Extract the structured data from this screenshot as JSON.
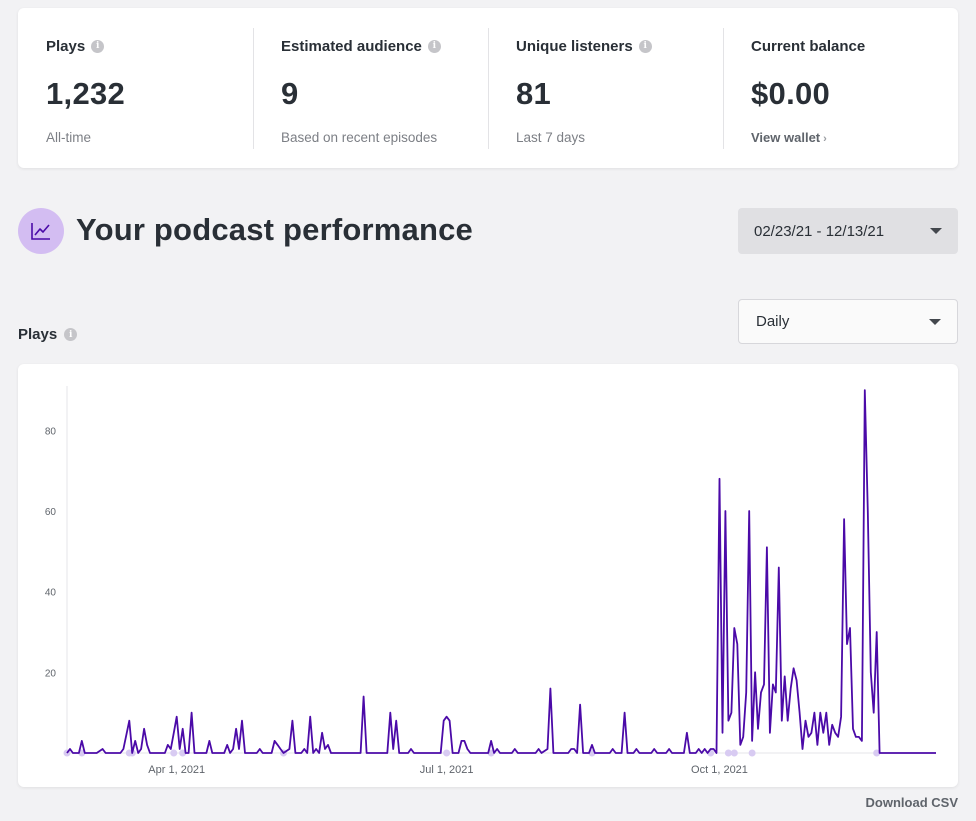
{
  "stats": [
    {
      "label": "Plays",
      "info": true,
      "value": "1,232",
      "sub": "All-time"
    },
    {
      "label": "Estimated audience",
      "info": true,
      "value": "9",
      "sub": "Based on recent episodes"
    },
    {
      "label": "Unique listeners",
      "info": true,
      "value": "81",
      "sub": "Last 7 days"
    },
    {
      "label": "Current balance",
      "info": false,
      "value": "$0.00",
      "link": "View wallet"
    }
  ],
  "performance": {
    "title": "Your podcast performance",
    "icon": "trend-chart-icon",
    "date_range": "02/23/21 - 12/13/21",
    "interval": "Daily",
    "plays_label": "Plays",
    "download": "Download CSV"
  },
  "colors": {
    "line": "#4b0aa8",
    "marker": "#d8cbf2",
    "accent_bg": "#d3bdf2"
  },
  "chart_data": {
    "type": "line",
    "title": "",
    "xlabel": "",
    "ylabel": "",
    "ylim": [
      0,
      92
    ],
    "yticks": [
      20,
      40,
      60,
      80
    ],
    "x_range": [
      "2021-02-23",
      "2021-12-13"
    ],
    "xticks": [
      {
        "date": "2021-04-01",
        "label": "Apr 1, 2021"
      },
      {
        "date": "2021-07-01",
        "label": "Jul 1, 2021"
      },
      {
        "date": "2021-10-01",
        "label": "Oct 1, 2021"
      }
    ],
    "grid": false,
    "series": [
      {
        "name": "",
        "points": [
          [
            "2021-02-23",
            0
          ],
          [
            "2021-02-24",
            1
          ],
          [
            "2021-02-25",
            0
          ],
          [
            "2021-02-26",
            0
          ],
          [
            "2021-02-27",
            0
          ],
          [
            "2021-02-28",
            3
          ],
          [
            "2021-03-01",
            0
          ],
          [
            "2021-03-05",
            0
          ],
          [
            "2021-03-07",
            1
          ],
          [
            "2021-03-08",
            0
          ],
          [
            "2021-03-13",
            0
          ],
          [
            "2021-03-14",
            1
          ],
          [
            "2021-03-16",
            8
          ],
          [
            "2021-03-17",
            0
          ],
          [
            "2021-03-18",
            3
          ],
          [
            "2021-03-19",
            0
          ],
          [
            "2021-03-20",
            1
          ],
          [
            "2021-03-21",
            6
          ],
          [
            "2021-03-22",
            2
          ],
          [
            "2021-03-23",
            0
          ],
          [
            "2021-03-28",
            0
          ],
          [
            "2021-03-29",
            2
          ],
          [
            "2021-03-30",
            1
          ],
          [
            "2021-03-31",
            5
          ],
          [
            "2021-04-01",
            9
          ],
          [
            "2021-04-02",
            1
          ],
          [
            "2021-04-03",
            6
          ],
          [
            "2021-04-04",
            0
          ],
          [
            "2021-04-05",
            0
          ],
          [
            "2021-04-06",
            10
          ],
          [
            "2021-04-07",
            0
          ],
          [
            "2021-04-11",
            0
          ],
          [
            "2021-04-12",
            3
          ],
          [
            "2021-04-13",
            0
          ],
          [
            "2021-04-17",
            0
          ],
          [
            "2021-04-18",
            2
          ],
          [
            "2021-04-19",
            0
          ],
          [
            "2021-04-20",
            1
          ],
          [
            "2021-04-21",
            6
          ],
          [
            "2021-04-22",
            1
          ],
          [
            "2021-04-23",
            8
          ],
          [
            "2021-04-24",
            0
          ],
          [
            "2021-04-28",
            0
          ],
          [
            "2021-04-29",
            1
          ],
          [
            "2021-04-30",
            0
          ],
          [
            "2021-05-03",
            0
          ],
          [
            "2021-05-04",
            3
          ],
          [
            "2021-05-05",
            2
          ],
          [
            "2021-05-06",
            1
          ],
          [
            "2021-05-07",
            0
          ],
          [
            "2021-05-09",
            1
          ],
          [
            "2021-05-10",
            8
          ],
          [
            "2021-05-11",
            0
          ],
          [
            "2021-05-13",
            0
          ],
          [
            "2021-05-14",
            1
          ],
          [
            "2021-05-15",
            0
          ],
          [
            "2021-05-16",
            9
          ],
          [
            "2021-05-17",
            0
          ],
          [
            "2021-05-18",
            1
          ],
          [
            "2021-05-19",
            0
          ],
          [
            "2021-05-20",
            5
          ],
          [
            "2021-05-21",
            1
          ],
          [
            "2021-05-22",
            2
          ],
          [
            "2021-05-23",
            0
          ],
          [
            "2021-06-02",
            0
          ],
          [
            "2021-06-03",
            14
          ],
          [
            "2021-06-04",
            0
          ],
          [
            "2021-06-11",
            0
          ],
          [
            "2021-06-12",
            10
          ],
          [
            "2021-06-13",
            1
          ],
          [
            "2021-06-14",
            8
          ],
          [
            "2021-06-15",
            0
          ],
          [
            "2021-06-18",
            0
          ],
          [
            "2021-06-19",
            1
          ],
          [
            "2021-06-20",
            0
          ],
          [
            "2021-06-29",
            0
          ],
          [
            "2021-06-30",
            8
          ],
          [
            "2021-07-01",
            9
          ],
          [
            "2021-07-02",
            8
          ],
          [
            "2021-07-03",
            0
          ],
          [
            "2021-07-05",
            0
          ],
          [
            "2021-07-06",
            3
          ],
          [
            "2021-07-07",
            3
          ],
          [
            "2021-07-08",
            1
          ],
          [
            "2021-07-09",
            0
          ],
          [
            "2021-07-15",
            0
          ],
          [
            "2021-07-16",
            3
          ],
          [
            "2021-07-17",
            0
          ],
          [
            "2021-07-18",
            1
          ],
          [
            "2021-07-19",
            0
          ],
          [
            "2021-07-23",
            0
          ],
          [
            "2021-07-24",
            1
          ],
          [
            "2021-07-25",
            0
          ],
          [
            "2021-07-31",
            0
          ],
          [
            "2021-08-01",
            1
          ],
          [
            "2021-08-02",
            0
          ],
          [
            "2021-08-04",
            1
          ],
          [
            "2021-08-05",
            16
          ],
          [
            "2021-08-06",
            0
          ],
          [
            "2021-08-11",
            0
          ],
          [
            "2021-08-12",
            1
          ],
          [
            "2021-08-13",
            1
          ],
          [
            "2021-08-14",
            0
          ],
          [
            "2021-08-15",
            12
          ],
          [
            "2021-08-16",
            0
          ],
          [
            "2021-08-18",
            0
          ],
          [
            "2021-08-19",
            2
          ],
          [
            "2021-08-20",
            0
          ],
          [
            "2021-08-25",
            0
          ],
          [
            "2021-08-26",
            1
          ],
          [
            "2021-08-27",
            0
          ],
          [
            "2021-08-29",
            0
          ],
          [
            "2021-08-30",
            10
          ],
          [
            "2021-08-31",
            0
          ],
          [
            "2021-09-02",
            0
          ],
          [
            "2021-09-03",
            1
          ],
          [
            "2021-09-04",
            0
          ],
          [
            "2021-09-08",
            0
          ],
          [
            "2021-09-09",
            1
          ],
          [
            "2021-09-10",
            0
          ],
          [
            "2021-09-13",
            0
          ],
          [
            "2021-09-14",
            1
          ],
          [
            "2021-09-15",
            0
          ],
          [
            "2021-09-19",
            0
          ],
          [
            "2021-09-20",
            5
          ],
          [
            "2021-09-21",
            0
          ],
          [
            "2021-09-23",
            0
          ],
          [
            "2021-09-24",
            1
          ],
          [
            "2021-09-25",
            0
          ],
          [
            "2021-09-26",
            1
          ],
          [
            "2021-09-27",
            0
          ],
          [
            "2021-09-28",
            1
          ],
          [
            "2021-09-29",
            1
          ],
          [
            "2021-09-30",
            0
          ],
          [
            "2021-10-01",
            68
          ],
          [
            "2021-10-02",
            5
          ],
          [
            "2021-10-03",
            60
          ],
          [
            "2021-10-04",
            8
          ],
          [
            "2021-10-05",
            10
          ],
          [
            "2021-10-06",
            31
          ],
          [
            "2021-10-07",
            27
          ],
          [
            "2021-10-08",
            2
          ],
          [
            "2021-10-09",
            4
          ],
          [
            "2021-10-10",
            15
          ],
          [
            "2021-10-11",
            60
          ],
          [
            "2021-10-12",
            3
          ],
          [
            "2021-10-13",
            20
          ],
          [
            "2021-10-14",
            6
          ],
          [
            "2021-10-15",
            15
          ],
          [
            "2021-10-16",
            17
          ],
          [
            "2021-10-17",
            51
          ],
          [
            "2021-10-18",
            5
          ],
          [
            "2021-10-19",
            17
          ],
          [
            "2021-10-20",
            15
          ],
          [
            "2021-10-21",
            46
          ],
          [
            "2021-10-22",
            8
          ],
          [
            "2021-10-23",
            19
          ],
          [
            "2021-10-24",
            8
          ],
          [
            "2021-10-25",
            16
          ],
          [
            "2021-10-26",
            21
          ],
          [
            "2021-10-27",
            18
          ],
          [
            "2021-10-28",
            10
          ],
          [
            "2021-10-29",
            1
          ],
          [
            "2021-10-30",
            8
          ],
          [
            "2021-10-31",
            4
          ],
          [
            "2021-11-01",
            5
          ],
          [
            "2021-11-02",
            10
          ],
          [
            "2021-11-03",
            2
          ],
          [
            "2021-11-04",
            10
          ],
          [
            "2021-11-05",
            5
          ],
          [
            "2021-11-06",
            10
          ],
          [
            "2021-11-07",
            2
          ],
          [
            "2021-11-08",
            7
          ],
          [
            "2021-11-09",
            5
          ],
          [
            "2021-11-10",
            4
          ],
          [
            "2021-11-11",
            9
          ],
          [
            "2021-11-12",
            58
          ],
          [
            "2021-11-13",
            27
          ],
          [
            "2021-11-14",
            31
          ],
          [
            "2021-11-15",
            6
          ],
          [
            "2021-11-16",
            4
          ],
          [
            "2021-11-17",
            4
          ],
          [
            "2021-11-18",
            3
          ],
          [
            "2021-11-19",
            90
          ],
          [
            "2021-11-20",
            60
          ],
          [
            "2021-11-21",
            20
          ],
          [
            "2021-11-22",
            10
          ],
          [
            "2021-11-23",
            30
          ],
          [
            "2021-11-24",
            0
          ],
          [
            "2021-12-13",
            0
          ]
        ]
      }
    ],
    "markers": [
      "2021-02-23",
      "2021-02-28",
      "2021-03-16",
      "2021-03-17",
      "2021-03-31",
      "2021-04-03",
      "2021-05-07",
      "2021-07-01",
      "2021-07-16",
      "2021-08-19",
      "2021-09-28",
      "2021-10-04",
      "2021-10-06",
      "2021-10-12",
      "2021-11-23"
    ]
  }
}
